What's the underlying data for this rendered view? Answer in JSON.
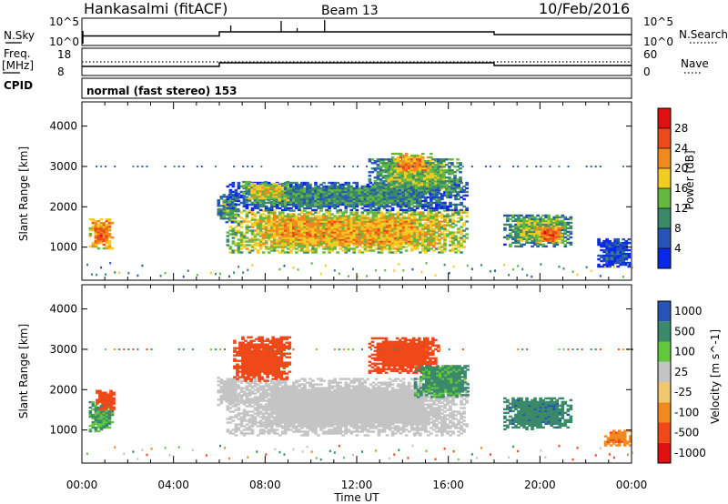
{
  "header": {
    "station": "Hankasalmi (fitACF)",
    "beam": "Beam 13",
    "date": "10/Feb/2016"
  },
  "params_panel": {
    "nsky_label": "N.Sky",
    "nsky_ticks": [
      "10^5",
      "10^0"
    ],
    "nsearch_label": "N.Search",
    "freq_label": "Freq.",
    "freq_unit": "[MHz]",
    "freq_ticks": [
      "18",
      "8"
    ],
    "nave_label": "Nave",
    "nave_ticks": [
      "60",
      "0"
    ],
    "cpid_label": "CPID",
    "cpid_value": "normal (fast stereo) 153"
  },
  "colors": {
    "power": [
      "#0a28e8",
      "#2855b5",
      "#3a8a6a",
      "#63b840",
      "#f2cc22",
      "#f08a1e",
      "#ec4a18",
      "#e01010"
    ],
    "velocity": [
      "#e01010",
      "#f04818",
      "#f08a1e",
      "#f2c66c",
      "#c4c4c4",
      "#63c840",
      "#3a8a6a",
      "#2855b5"
    ],
    "ground_scatter": "#c4c4c4"
  },
  "chart_data": [
    {
      "type": "heatmap",
      "panel": "power",
      "ylabel": "Slant Range [km]",
      "y_ticks": [
        "1000",
        "2000",
        "3000",
        "4000"
      ],
      "ylim": [
        180,
        4600
      ],
      "xlim": [
        "00:00",
        "24:00"
      ],
      "x_ticks": [
        "00:00",
        "04:00",
        "08:00",
        "12:00",
        "16:00",
        "20:00",
        "00:00"
      ],
      "colorbar_label": "Power [dB]",
      "colorbar_ticks": [
        "4",
        "8",
        "12",
        "16",
        "20",
        "24",
        "28"
      ],
      "colorbar_range": [
        0,
        32
      ],
      "regions": [
        {
          "t": [
            0.3,
            1.3
          ],
          "r": [
            950,
            1700
          ],
          "level": 24
        },
        {
          "t": [
            5.9,
            6.8
          ],
          "r": [
            1600,
            2300
          ],
          "level": 12
        },
        {
          "t": [
            6.3,
            16.8
          ],
          "r": [
            850,
            1900
          ],
          "level": 20
        },
        {
          "t": [
            6.3,
            16.8
          ],
          "r": [
            1900,
            2600
          ],
          "level": 10
        },
        {
          "t": [
            7.0,
            9.0
          ],
          "r": [
            2100,
            2600
          ],
          "level": 18
        },
        {
          "t": [
            12.5,
            16.5
          ],
          "r": [
            2300,
            3200
          ],
          "level": 14
        },
        {
          "t": [
            13.5,
            15.2
          ],
          "r": [
            2800,
            3300
          ],
          "level": 22
        },
        {
          "t": [
            18.4,
            21.3
          ],
          "r": [
            1000,
            1800
          ],
          "level": 14
        },
        {
          "t": [
            19.8,
            21.0
          ],
          "r": [
            1100,
            1500
          ],
          "level": 24
        },
        {
          "t": [
            22.5,
            23.9
          ],
          "r": [
            500,
            1200
          ],
          "level": 6
        }
      ]
    },
    {
      "type": "heatmap",
      "panel": "velocity",
      "ylabel": "Slant Range [km]",
      "y_ticks": [
        "1000",
        "2000",
        "3000",
        "4000"
      ],
      "ylim": [
        180,
        4600
      ],
      "xlim": [
        "00:00",
        "24:00"
      ],
      "x_ticks": [
        "00:00",
        "04:00",
        "08:00",
        "12:00",
        "16:00",
        "20:00",
        "00:00"
      ],
      "xlabel": "Time UT",
      "colorbar_label": "Velocity [m s^-1]",
      "colorbar_ticks": [
        "1000",
        "500",
        "100",
        "25",
        "-25",
        "-100",
        "-500",
        "-1000"
      ],
      "regions": [
        {
          "t": [
            0.3,
            1.3
          ],
          "r": [
            950,
            1700
          ],
          "v": 100
        },
        {
          "t": [
            0.6,
            1.4
          ],
          "r": [
            1500,
            2000
          ],
          "v": -300
        },
        {
          "t": [
            5.9,
            6.8
          ],
          "r": [
            1600,
            2300
          ],
          "v": 0
        },
        {
          "t": [
            6.3,
            16.8
          ],
          "r": [
            850,
            2250
          ],
          "v": 0
        },
        {
          "t": [
            6.6,
            9.0
          ],
          "r": [
            2200,
            3300
          ],
          "v": -300
        },
        {
          "t": [
            12.5,
            15.5
          ],
          "r": [
            2400,
            3300
          ],
          "v": -200
        },
        {
          "t": [
            14.5,
            16.8
          ],
          "r": [
            1800,
            2600
          ],
          "v": 120
        },
        {
          "t": [
            18.4,
            21.3
          ],
          "r": [
            1000,
            1800
          ],
          "v": 400
        },
        {
          "t": [
            22.8,
            23.9
          ],
          "r": [
            600,
            1000
          ],
          "v": -80
        }
      ]
    }
  ]
}
